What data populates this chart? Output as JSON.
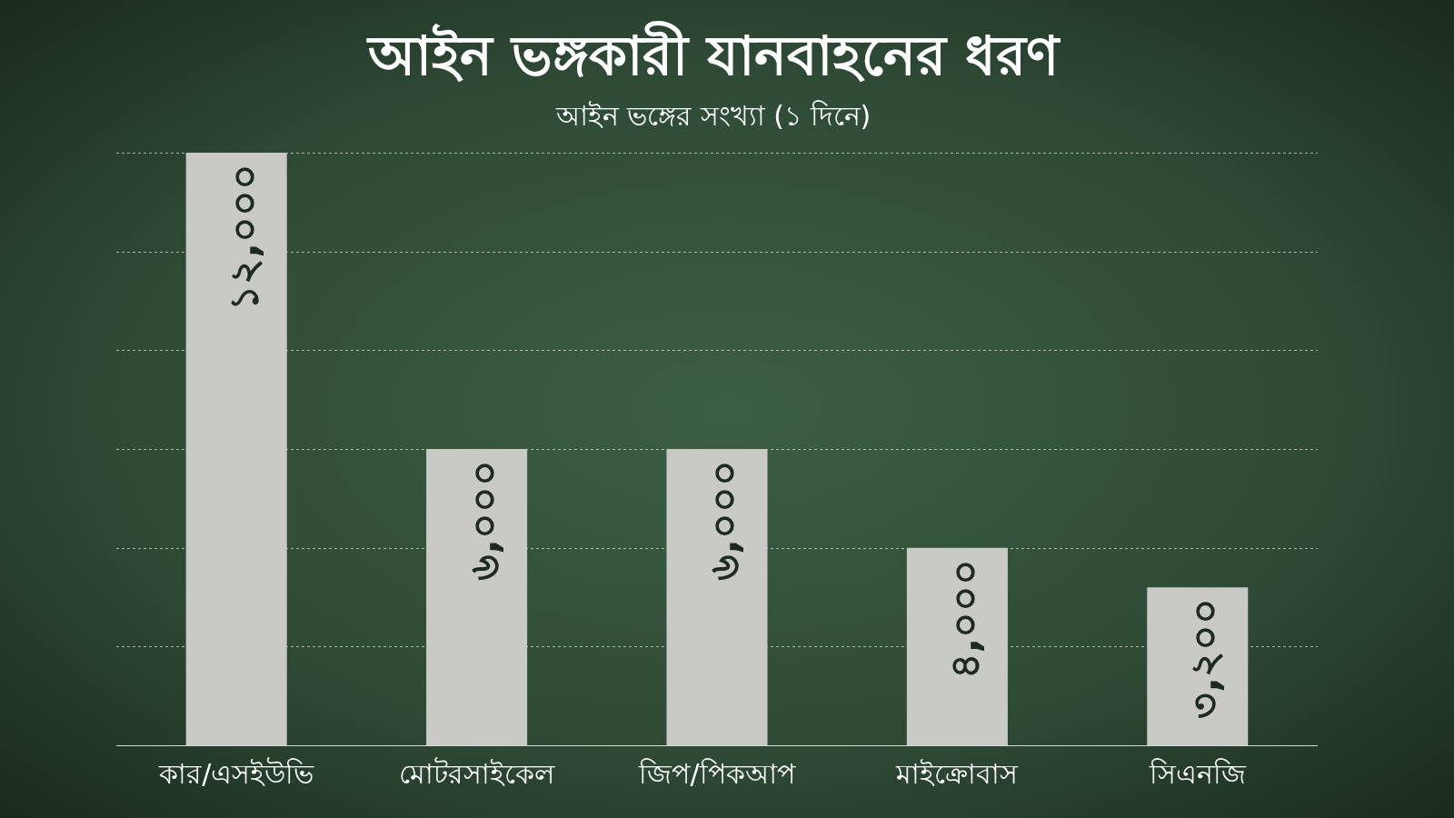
{
  "chart_data": {
    "type": "bar",
    "title": "আইন ভঙ্গকারী যানবাহনের ধরণ",
    "subtitle": "আইন ভঙ্গের সংখ্যা (১ দিনে)",
    "categories": [
      "কার/এসইউভি",
      "মোটরসাইকেল",
      "জিপ/পিকআপ",
      "মাইক্রোবাস",
      "সিএনজি"
    ],
    "values": [
      12000,
      6000,
      6000,
      4000,
      3200
    ],
    "value_labels": [
      "১২,০০০",
      "৬,০০০",
      "৬,০০০",
      "৪,০০০",
      "৩,২০০"
    ],
    "color": "#c9cac5",
    "ylim": [
      0,
      12000
    ],
    "yticks": [
      {
        "value": 0,
        "label": null
      },
      {
        "value": 2000,
        "label": null
      },
      {
        "value": 4000,
        "label": null
      },
      {
        "value": 6000,
        "label": null
      },
      {
        "value": 8000,
        "label": null
      },
      {
        "value": 10000,
        "label": null
      },
      {
        "value": 12000,
        "label": null
      }
    ],
    "tick_labels": "x",
    "grid": "y",
    "legend": false
  }
}
